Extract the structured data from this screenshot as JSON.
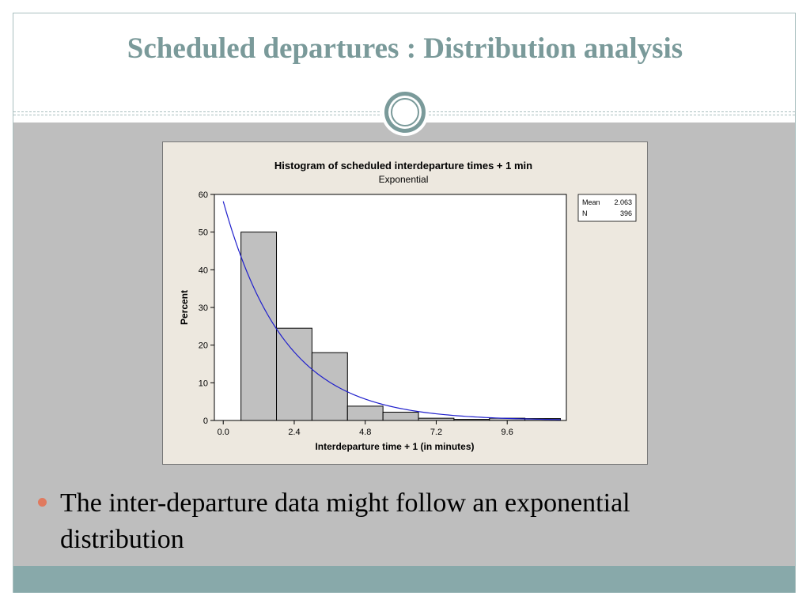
{
  "slide": {
    "title": "Scheduled departures : Distribution analysis",
    "bullet": "The inter-departure data might follow an exponential distribution",
    "colors": {
      "title": "#7a9a9a",
      "band": "#bebebe",
      "footer": "#88a9aa",
      "bullet": "#e07a5f"
    }
  },
  "chart_data": {
    "type": "bar",
    "title": "Histogram of scheduled interdeparture times + 1 min",
    "subtitle": "Exponential",
    "xlabel": "Interdeparture time + 1 (in minutes)",
    "ylabel": "Percent",
    "xlim": [
      -0.3,
      11.6
    ],
    "ylim": [
      0,
      60
    ],
    "xticks": [
      "0.0",
      "2.4",
      "4.8",
      "7.2",
      "9.6"
    ],
    "yticks": [
      "0",
      "10",
      "20",
      "30",
      "40",
      "50",
      "60"
    ],
    "bins": [
      {
        "start": 0.6,
        "end": 1.8,
        "percent": 50.0
      },
      {
        "start": 1.8,
        "end": 3.0,
        "percent": 24.5
      },
      {
        "start": 3.0,
        "end": 4.2,
        "percent": 18.0
      },
      {
        "start": 4.2,
        "end": 5.4,
        "percent": 3.8
      },
      {
        "start": 5.4,
        "end": 6.6,
        "percent": 2.2
      },
      {
        "start": 6.6,
        "end": 7.8,
        "percent": 0.6
      },
      {
        "start": 7.8,
        "end": 9.0,
        "percent": 0.3
      },
      {
        "start": 9.0,
        "end": 10.2,
        "percent": 0.6
      },
      {
        "start": 10.2,
        "end": 11.4,
        "percent": 0.5
      }
    ],
    "fit": {
      "distribution": "Exponential",
      "mean": 2.063,
      "color": "#1f1fcc"
    },
    "legend": {
      "placement": "top-right",
      "rows": [
        {
          "label": "Mean",
          "value": "2.063"
        },
        {
          "label": "N",
          "value": "396"
        }
      ]
    },
    "bar_color": "#c0c0c0",
    "grid": false
  }
}
